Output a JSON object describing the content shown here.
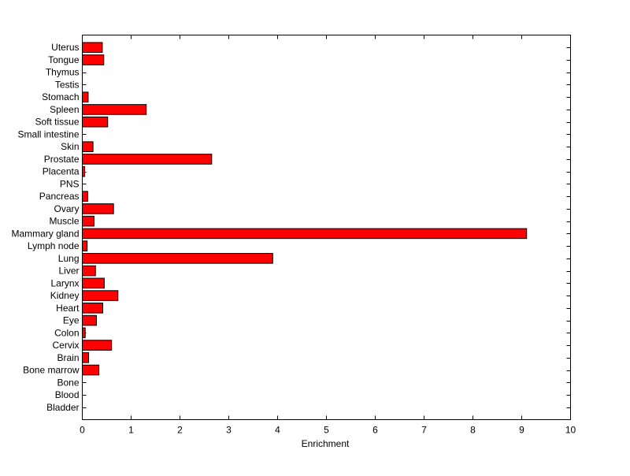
{
  "chart_data": {
    "type": "bar",
    "orientation": "horizontal",
    "xlabel": "Enrichment",
    "xlim": [
      0,
      10
    ],
    "xticks": [
      "0",
      "1",
      "2",
      "3",
      "4",
      "5",
      "6",
      "7",
      "8",
      "9",
      "10"
    ],
    "grid": false,
    "bar_color": "#ff0000",
    "categories": [
      "Bladder",
      "Blood",
      "Bone",
      "Bone marrow",
      "Brain",
      "Cervix",
      "Colon",
      "Eye",
      "Heart",
      "Kidney",
      "Larynx",
      "Liver",
      "Lung",
      "Lymph node",
      "Mammary gland",
      "Muscle",
      "Ovary",
      "Pancreas",
      "PNS",
      "Placenta",
      "Prostate",
      "Skin",
      "Small intestine",
      "Soft tissue",
      "Spleen",
      "Stomach",
      "Testis",
      "Thymus",
      "Tongue",
      "Uterus"
    ],
    "values": [
      0,
      0,
      0,
      0.34,
      0.13,
      0.6,
      0.06,
      0.29,
      0.42,
      0.73,
      0.45,
      0.27,
      3.9,
      0.1,
      9.1,
      0.24,
      0.64,
      0.11,
      0,
      0.05,
      2.65,
      0.22,
      0,
      0.52,
      1.31,
      0.12,
      0,
      0,
      0.44,
      0.41
    ]
  }
}
